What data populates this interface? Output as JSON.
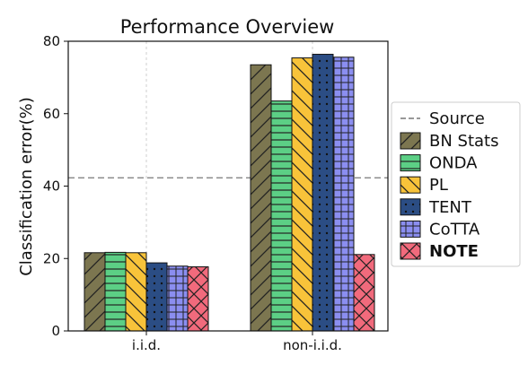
{
  "chart_data": {
    "type": "bar",
    "title": "Performance Overview",
    "xlabel": "",
    "ylabel": "Classification error(%)",
    "ylim": [
      0,
      80
    ],
    "yticks": [
      0,
      20,
      40,
      60,
      80
    ],
    "grid": "vertical dashed at categories",
    "legend_position": "right",
    "categories": [
      "i.i.d.",
      "non-i.i.d."
    ],
    "reference_line": {
      "name": "Source",
      "value": 42.3,
      "style": "dashed",
      "color": "#777777"
    },
    "series": [
      {
        "name": "BN Stats",
        "values": [
          21.6,
          73.5
        ],
        "color": "#7c7650",
        "hatch": "diagonal-forward"
      },
      {
        "name": "ONDA",
        "values": [
          21.7,
          63.5
        ],
        "color": "#5ccf85",
        "hatch": "horizontal"
      },
      {
        "name": "PL",
        "values": [
          21.6,
          75.4
        ],
        "color": "#f8c33a",
        "hatch": "diagonal-back"
      },
      {
        "name": "TENT",
        "values": [
          18.8,
          76.4
        ],
        "color": "#2b4d84",
        "hatch": "dots"
      },
      {
        "name": "CoTTA",
        "values": [
          17.9,
          75.6
        ],
        "color": "#8b8ef0",
        "hatch": "grid"
      },
      {
        "name": "NOTE",
        "values": [
          17.7,
          21.1
        ],
        "color": "#f16a7c",
        "hatch": "cross",
        "bold": true
      }
    ]
  }
}
